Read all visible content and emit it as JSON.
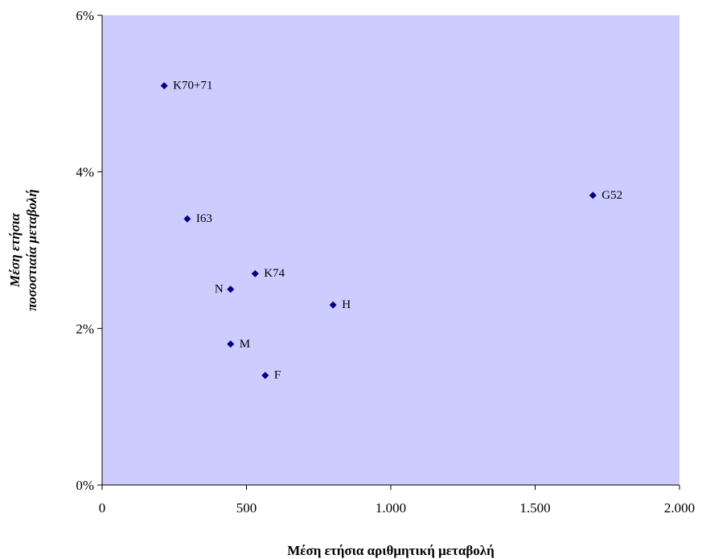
{
  "chart_data": {
    "type": "scatter",
    "title": "",
    "xlabel": "Μέση ετήσια αριθμητική μεταβολή",
    "ylabel_lines": [
      "Μέση ετήσια",
      "ποσοστιαία μεταβολή"
    ],
    "xlim": [
      0,
      2000
    ],
    "ylim": [
      0,
      0.06
    ],
    "x_ticks": [
      {
        "value": 0,
        "label": "0"
      },
      {
        "value": 500,
        "label": "500"
      },
      {
        "value": 1000,
        "label": "1.000"
      },
      {
        "value": 1500,
        "label": "1.500"
      },
      {
        "value": 2000,
        "label": "2.000"
      }
    ],
    "y_ticks": [
      {
        "value": 0,
        "label": "0%"
      },
      {
        "value": 0.02,
        "label": "2%"
      },
      {
        "value": 0.04,
        "label": "4%"
      },
      {
        "value": 0.06,
        "label": "6%"
      }
    ],
    "grid": false,
    "legend": "none",
    "plot_background": "#ccccff",
    "marker_color": "#000080",
    "points": [
      {
        "label": "K70+71",
        "x": 215,
        "y": 0.051,
        "label_side": "right"
      },
      {
        "label": "G52",
        "x": 1700,
        "y": 0.037,
        "label_side": "right"
      },
      {
        "label": "I63",
        "x": 295,
        "y": 0.034,
        "label_side": "right"
      },
      {
        "label": "K74",
        "x": 530,
        "y": 0.027,
        "label_side": "right"
      },
      {
        "label": "N",
        "x": 445,
        "y": 0.025,
        "label_side": "left"
      },
      {
        "label": "H",
        "x": 800,
        "y": 0.023,
        "label_side": "right"
      },
      {
        "label": "M",
        "x": 445,
        "y": 0.018,
        "label_side": "right"
      },
      {
        "label": "F",
        "x": 565,
        "y": 0.014,
        "label_side": "right"
      }
    ]
  }
}
